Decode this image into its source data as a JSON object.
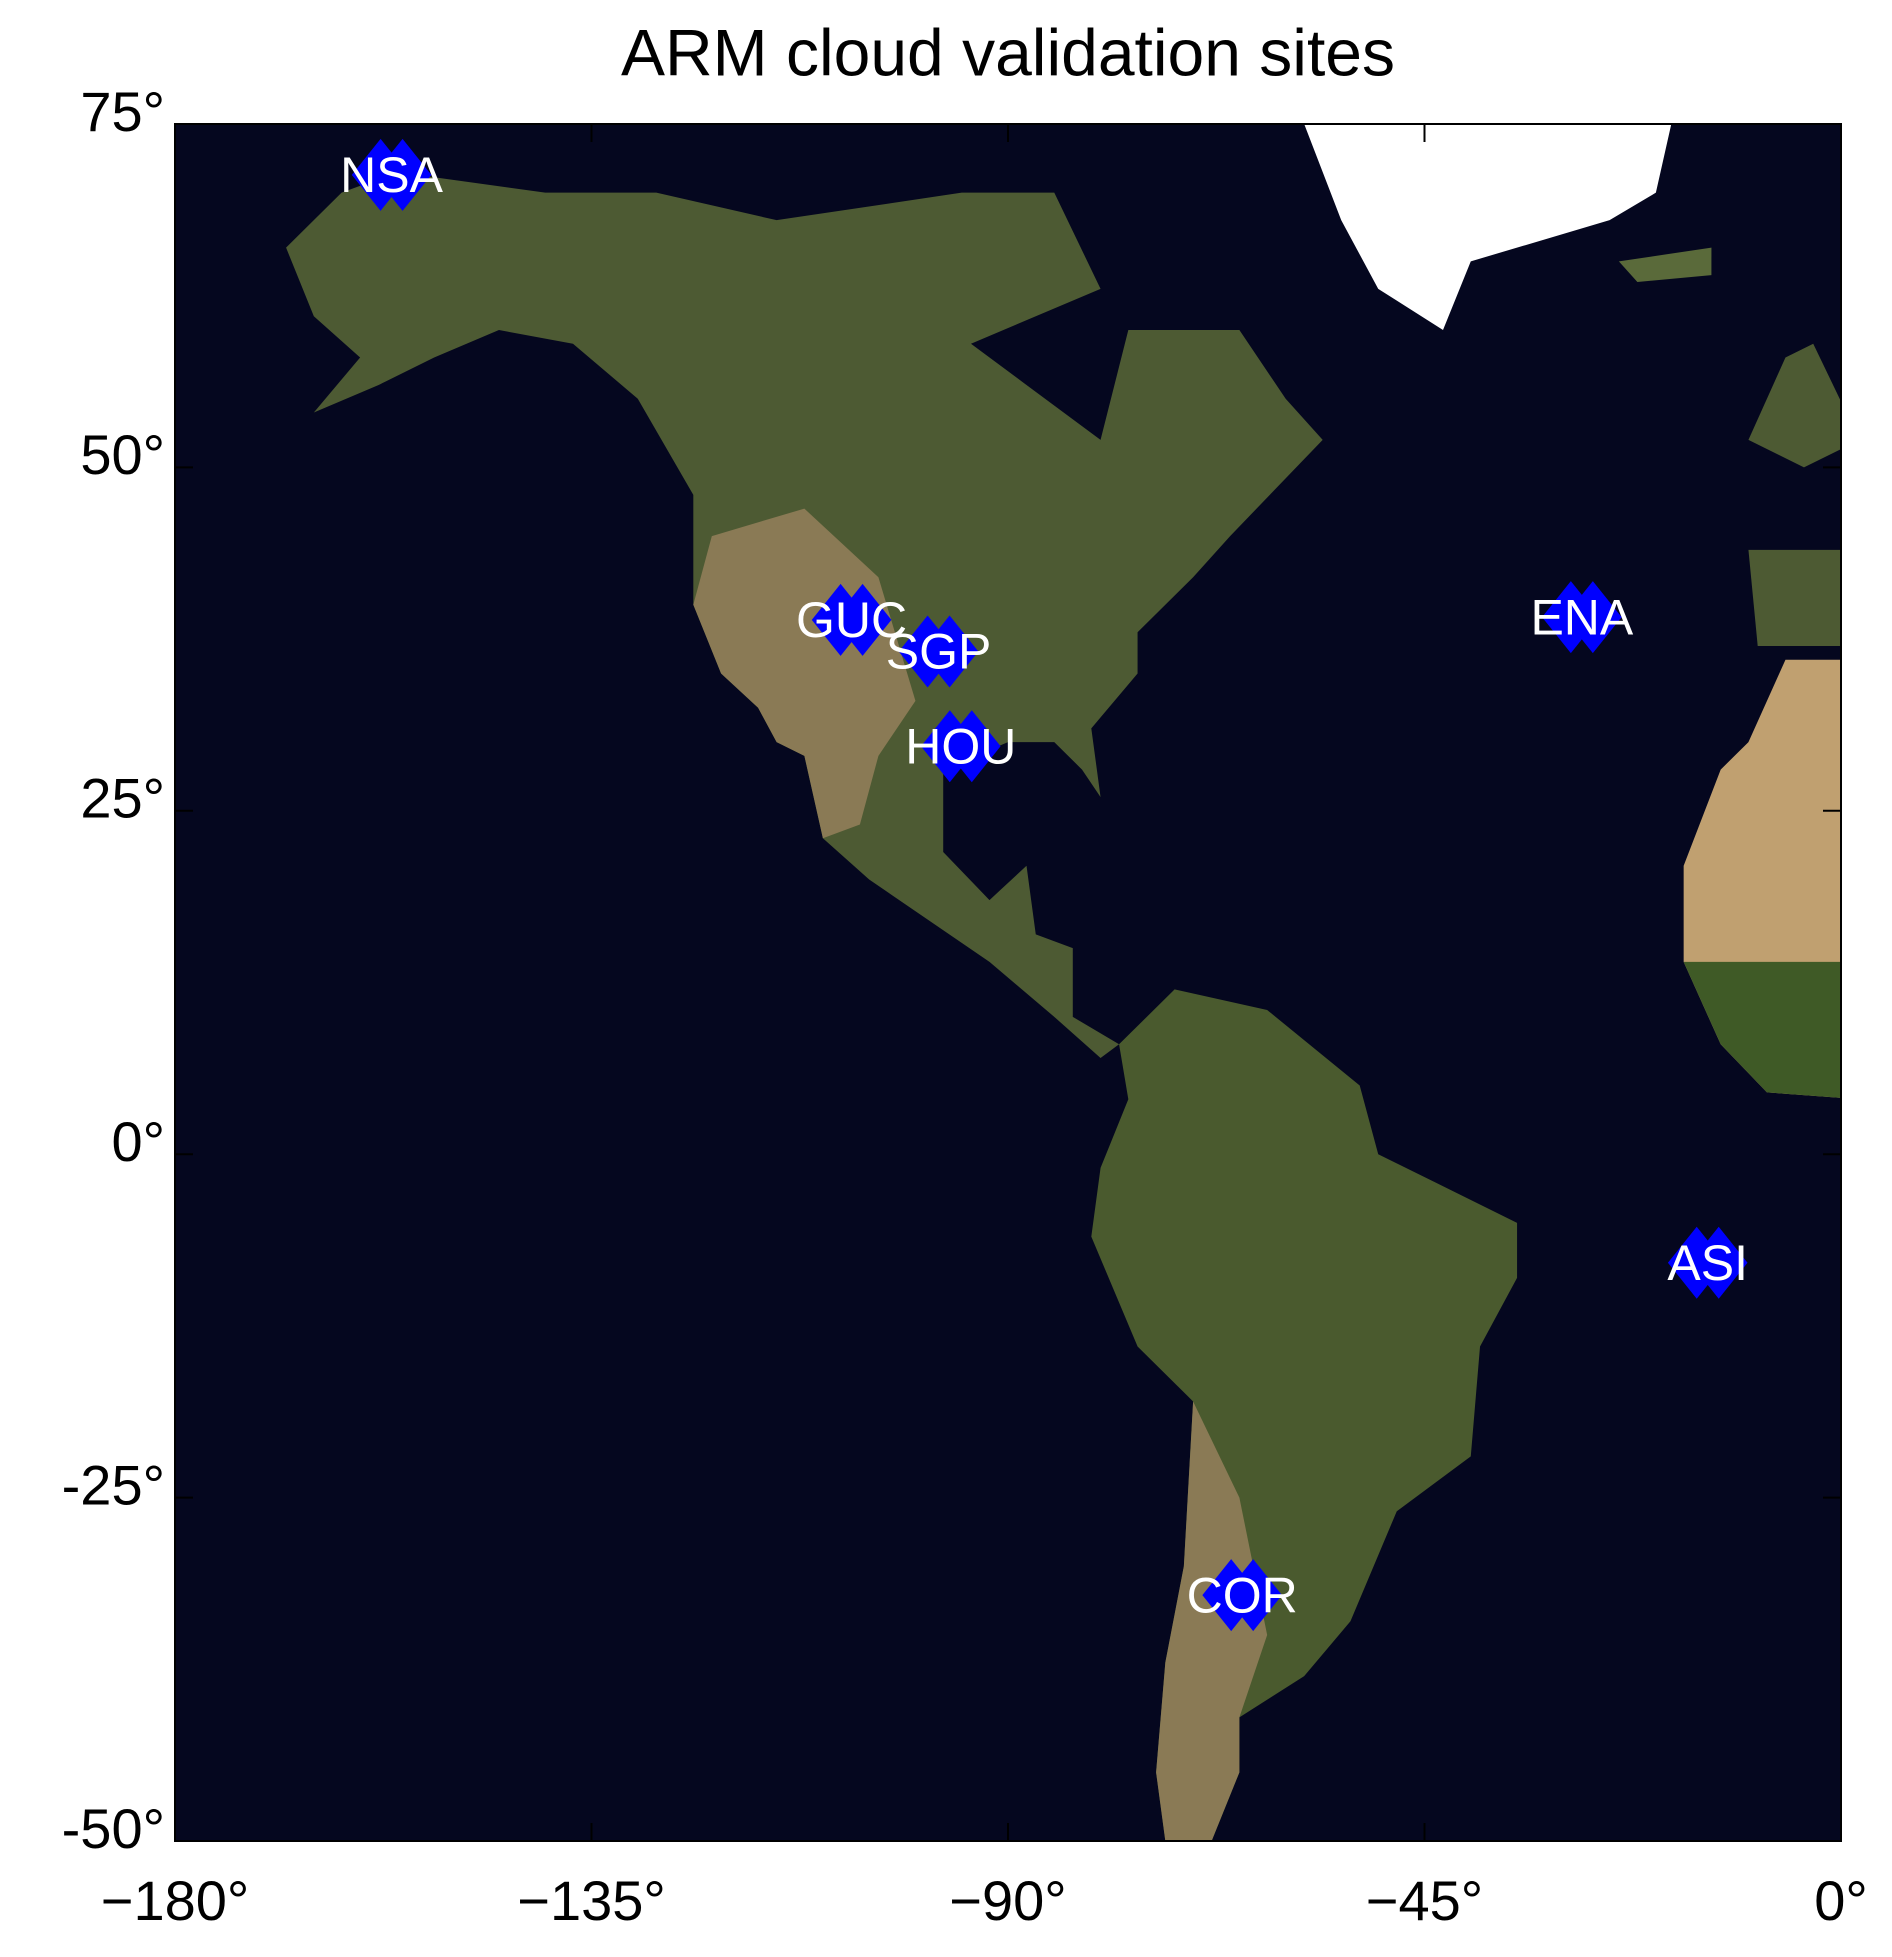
{
  "chart_data": {
    "type": "scatter",
    "title": "ARM cloud validation sites",
    "x": [
      -156.6,
      -106.9,
      -97.5,
      -95.1,
      -28.0,
      -14.4,
      -64.7
    ],
    "values": [
      71.3,
      38.9,
      36.6,
      29.7,
      39.1,
      -7.9,
      -32.1
    ],
    "labels": [
      "NSA",
      "GUC",
      "SGP",
      "HOU",
      "ENA",
      "ASI",
      "COR"
    ],
    "color": "#0000ff",
    "xlim": [
      -180,
      0
    ],
    "ylim": [
      -50,
      75
    ],
    "xticks": [
      {
        "value": -180,
        "label": "−180°"
      },
      {
        "value": -135,
        "label": "−135°"
      },
      {
        "value": -90,
        "label": "−90°"
      },
      {
        "value": -45,
        "label": "−45°"
      },
      {
        "value": 0,
        "label": "0°"
      }
    ],
    "yticks": [
      {
        "value": -50,
        "label": "-50°"
      },
      {
        "value": -25,
        "label": "-25°"
      },
      {
        "value": 0,
        "label": "0°"
      },
      {
        "value": 25,
        "label": "25°"
      },
      {
        "value": 50,
        "label": "50°"
      },
      {
        "value": 75,
        "label": "75°"
      }
    ]
  }
}
